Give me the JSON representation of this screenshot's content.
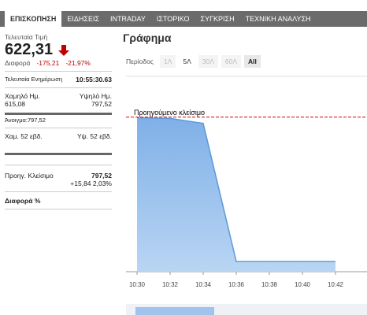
{
  "tabs": [
    "ΕΠΙΣΚΟΠΗΣΗ",
    "ΕΙΔΗΣΕΙΣ",
    "INTRADAY",
    "ΙΣΤΟΡΙΚΟ",
    "ΣΥΓΚΡΙΣΗ",
    "ΤΕΧΝΙΚΗ ΑΝΑΛΥΣΗ"
  ],
  "quote": {
    "last_label": "Τελευταία Τιμή",
    "last": "622,31",
    "change_label": "Διαφορά",
    "change": "-175,21",
    "change_pct": "-21,97%",
    "update_label": "Τελευταία Ενημέρωση",
    "update_time": "10:55:30.63",
    "low_label": "Χαμηλό Ημ.",
    "low": "615,08",
    "high_label": "Υψηλό Ημ.",
    "high": "797,52",
    "open": "Άνοιγμα:797,52",
    "low52_label": "Χαμ. 52 εβδ.",
    "high52_label": "Υψ. 52 εβδ.",
    "prev_close_label": "Προηγ. Κλείσιμο",
    "prev_close": "797,52",
    "prev_change": "+15,84 2,03%",
    "diff_pct_label": "Διαφορά %"
  },
  "chart_panel": {
    "title": "Γράφημα",
    "period_label": "Περίοδος",
    "periods": [
      "1Λ",
      "5Λ",
      "30Λ",
      "60Λ",
      "All"
    ]
  },
  "chart_data": {
    "type": "area",
    "x": [
      "10:30",
      "10:32",
      "10:34",
      "10:36",
      "10:38",
      "10:40",
      "10:42"
    ],
    "values": [
      797,
      796,
      790,
      622.31,
      622.31,
      622.31,
      622.31
    ],
    "color": "#7fb0e8",
    "ylim": [
      610,
      847
    ],
    "reference": {
      "label": "Προηγούμενο κλείσιμο",
      "value": 797.52,
      "color": "#d00000"
    }
  }
}
